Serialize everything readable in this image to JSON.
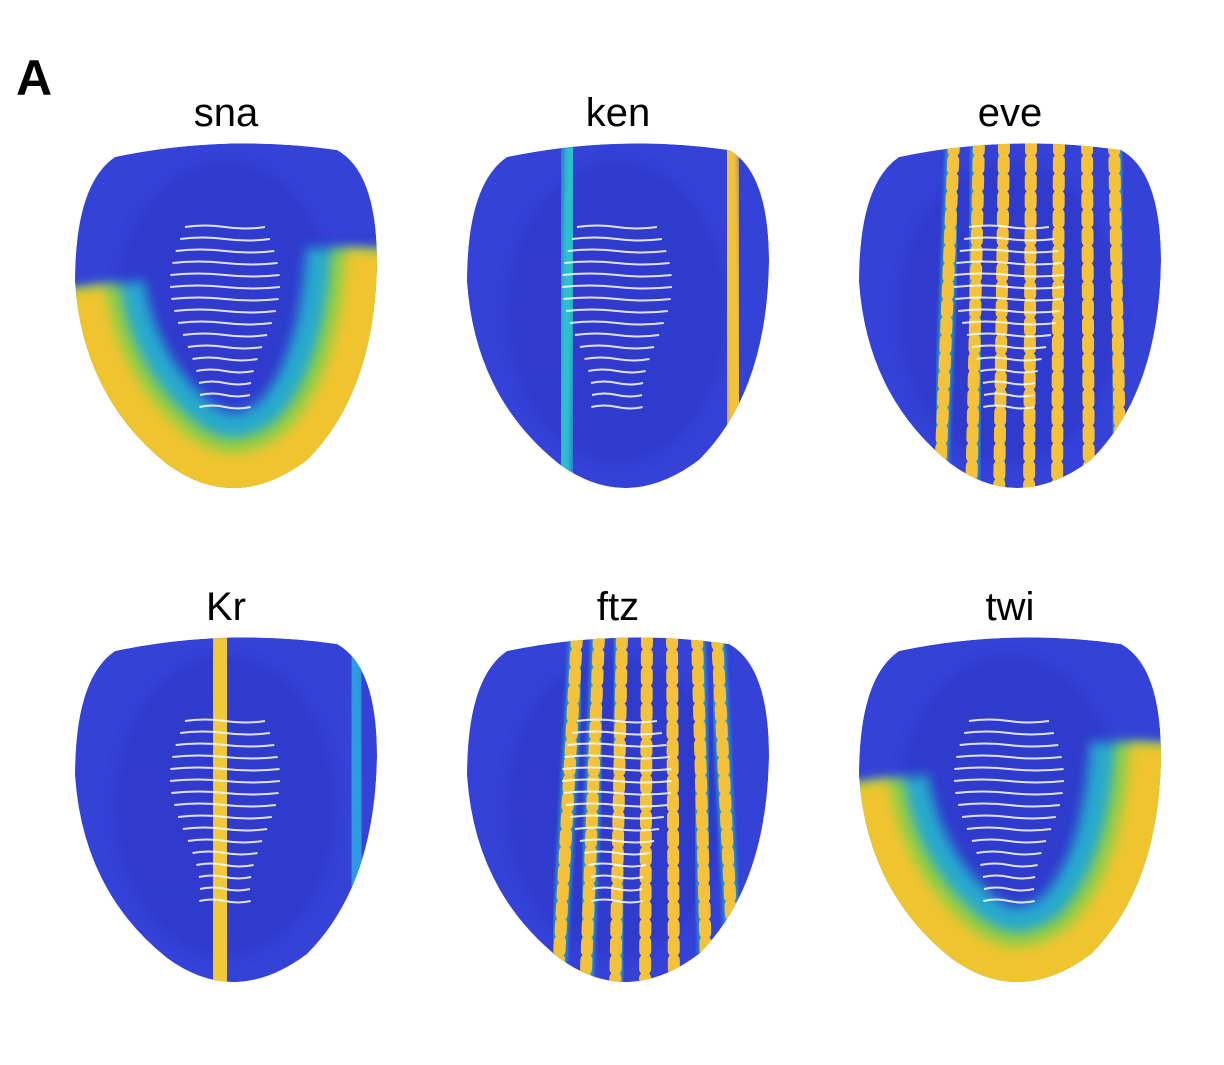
{
  "panel_label": "A",
  "panels": [
    {
      "title": "sna"
    },
    {
      "title": "ken"
    },
    {
      "title": "eve"
    },
    {
      "title": "Kr"
    },
    {
      "title": "ftz"
    },
    {
      "title": "twi"
    }
  ]
}
